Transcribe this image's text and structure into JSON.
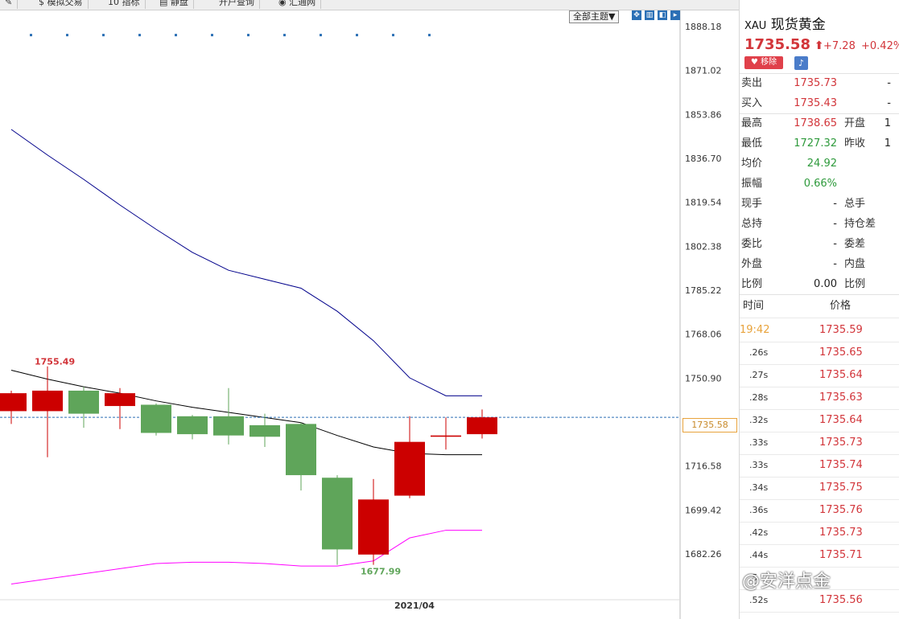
{
  "toolbar": {
    "buttons": [
      {
        "label": "✎",
        "icon": "pen-icon"
      },
      {
        "label": "$ 模拟交易",
        "icon": "dollar-icon"
      },
      {
        "label": "10 指标",
        "icon": "indicator-icon"
      },
      {
        "label": "▤ 静盘",
        "icon": "board-icon"
      },
      {
        "label": "开户查询",
        "icon": "query-icon"
      },
      {
        "label": "◉ 汇通网",
        "icon": "globe-icon"
      }
    ]
  },
  "chart": {
    "theme_label": "全部主题▼",
    "current_price_tag": "1735.58",
    "high_marker": "1755.49",
    "low_marker": "1677.99",
    "x_label": "2021/04",
    "colors": {
      "up": "#cc0000",
      "down": "#5fa55a",
      "upper_band": "#00008b",
      "mid_band": "#000000",
      "lower_band": "#ff00ff",
      "price_line": "#2b6fb5"
    }
  },
  "chart_data": {
    "type": "candlestick",
    "ylim": [
      1675,
      1892
    ],
    "y_ticks": [
      "1888.18",
      "1871.02",
      "1853.86",
      "1836.70",
      "1819.54",
      "1802.38",
      "1785.22",
      "1768.06",
      "1750.90",
      "1716.58",
      "1699.42",
      "1682.26"
    ],
    "candles": [
      {
        "open": 1738.0,
        "close": 1745.0,
        "high": 1746.0,
        "low": 1733.0
      },
      {
        "open": 1738.0,
        "close": 1746.0,
        "high": 1755.49,
        "low": 1720.0
      },
      {
        "open": 1746.0,
        "close": 1737.0,
        "high": 1747.5,
        "low": 1731.5
      },
      {
        "open": 1740.0,
        "close": 1745.0,
        "high": 1747.0,
        "low": 1731.0
      },
      {
        "open": 1740.5,
        "close": 1729.5,
        "high": 1741.0,
        "low": 1728.5
      },
      {
        "open": 1736.0,
        "close": 1729.0,
        "high": 1736.5,
        "low": 1727.0
      },
      {
        "open": 1736.0,
        "close": 1728.5,
        "high": 1747.0,
        "low": 1725.0
      },
      {
        "open": 1732.5,
        "close": 1728.0,
        "high": 1737.0,
        "low": 1724.0
      },
      {
        "open": 1733.0,
        "close": 1713.0,
        "high": 1733.5,
        "low": 1707.0
      },
      {
        "open": 1712.0,
        "close": 1684.0,
        "high": 1713.0,
        "low": 1678.0
      },
      {
        "open": 1682.0,
        "close": 1703.5,
        "high": 1711.5,
        "low": 1677.99
      },
      {
        "open": 1705.0,
        "close": 1726.0,
        "high": 1736.0,
        "low": 1704.0
      },
      {
        "open": 1728.0,
        "close": 1728.5,
        "high": 1735.5,
        "low": 1723.0
      },
      {
        "open": 1729.0,
        "close": 1735.58,
        "high": 1738.65,
        "low": 1727.32
      }
    ],
    "bands": {
      "upper": [
        1848.0,
        1838.0,
        1828.5,
        1818.5,
        1809.0,
        1800.0,
        1793.0,
        1789.5,
        1786.0,
        1777.0,
        1765.5,
        1751.0,
        1744.0,
        1744.0
      ],
      "mid": [
        1754.0,
        1750.5,
        1747.5,
        1745.0,
        1742.0,
        1739.5,
        1737.5,
        1735.5,
        1733.5,
        1728.5,
        1724.0,
        1721.5,
        1721.0,
        1721.0
      ],
      "lower": [
        1670.5,
        1672.5,
        1674.5,
        1676.5,
        1678.5,
        1679.0,
        1679.0,
        1678.5,
        1677.5,
        1677.5,
        1679.5,
        1688.5,
        1691.5,
        1691.5
      ]
    }
  },
  "panel": {
    "symbol": "XAU",
    "name": "现货黄金",
    "price": "1735.58",
    "change": "+7.28",
    "change_pct": "+0.42%",
    "remove_label": "移除",
    "quote_rows": [
      {
        "l": "卖出",
        "v": "1735.73",
        "c": "red",
        "l2": "",
        "v2": "-"
      },
      {
        "l": "买入",
        "v": "1735.43",
        "c": "red",
        "l2": "",
        "v2": "-"
      },
      {
        "l": "最高",
        "v": "1738.65",
        "c": "red",
        "l2": "开盘",
        "v2": "1"
      },
      {
        "l": "最低",
        "v": "1727.32",
        "c": "green",
        "l2": "昨收",
        "v2": "1"
      },
      {
        "l": "均价",
        "v": "24.92",
        "c": "green",
        "l2": "",
        "v2": ""
      },
      {
        "l": "振幅",
        "v": "0.66%",
        "c": "green",
        "l2": "",
        "v2": ""
      },
      {
        "l": "现手",
        "v": "-",
        "c": "dark",
        "l2": "总手",
        "v2": ""
      },
      {
        "l": "总持",
        "v": "-",
        "c": "dark",
        "l2": "持仓差",
        "v2": ""
      },
      {
        "l": "委比",
        "v": "-",
        "c": "dark",
        "l2": "委差",
        "v2": ""
      },
      {
        "l": "外盘",
        "v": "-",
        "c": "dark",
        "l2": "内盘",
        "v2": ""
      },
      {
        "l": "比例",
        "v": "0.00",
        "c": "dark",
        "l2": "比例",
        "v2": ""
      }
    ],
    "ticks_header": {
      "time": "时间",
      "price": "价格"
    },
    "ticks": [
      {
        "t": "19:42",
        "p": "1735.59"
      },
      {
        "t": ".26s",
        "p": "1735.65"
      },
      {
        "t": ".27s",
        "p": "1735.64"
      },
      {
        "t": ".28s",
        "p": "1735.63"
      },
      {
        "t": ".32s",
        "p": "1735.64"
      },
      {
        "t": ".33s",
        "p": "1735.73"
      },
      {
        "t": ".33s",
        "p": "1735.74"
      },
      {
        "t": ".34s",
        "p": "1735.75"
      },
      {
        "t": ".36s",
        "p": "1735.76"
      },
      {
        "t": ".42s",
        "p": "1735.73"
      },
      {
        "t": ".44s",
        "p": "1735.71"
      },
      {
        "t": ".5",
        "p": ""
      },
      {
        "t": ".52s",
        "p": "1735.56"
      }
    ],
    "watermark": "@安洋点金"
  }
}
